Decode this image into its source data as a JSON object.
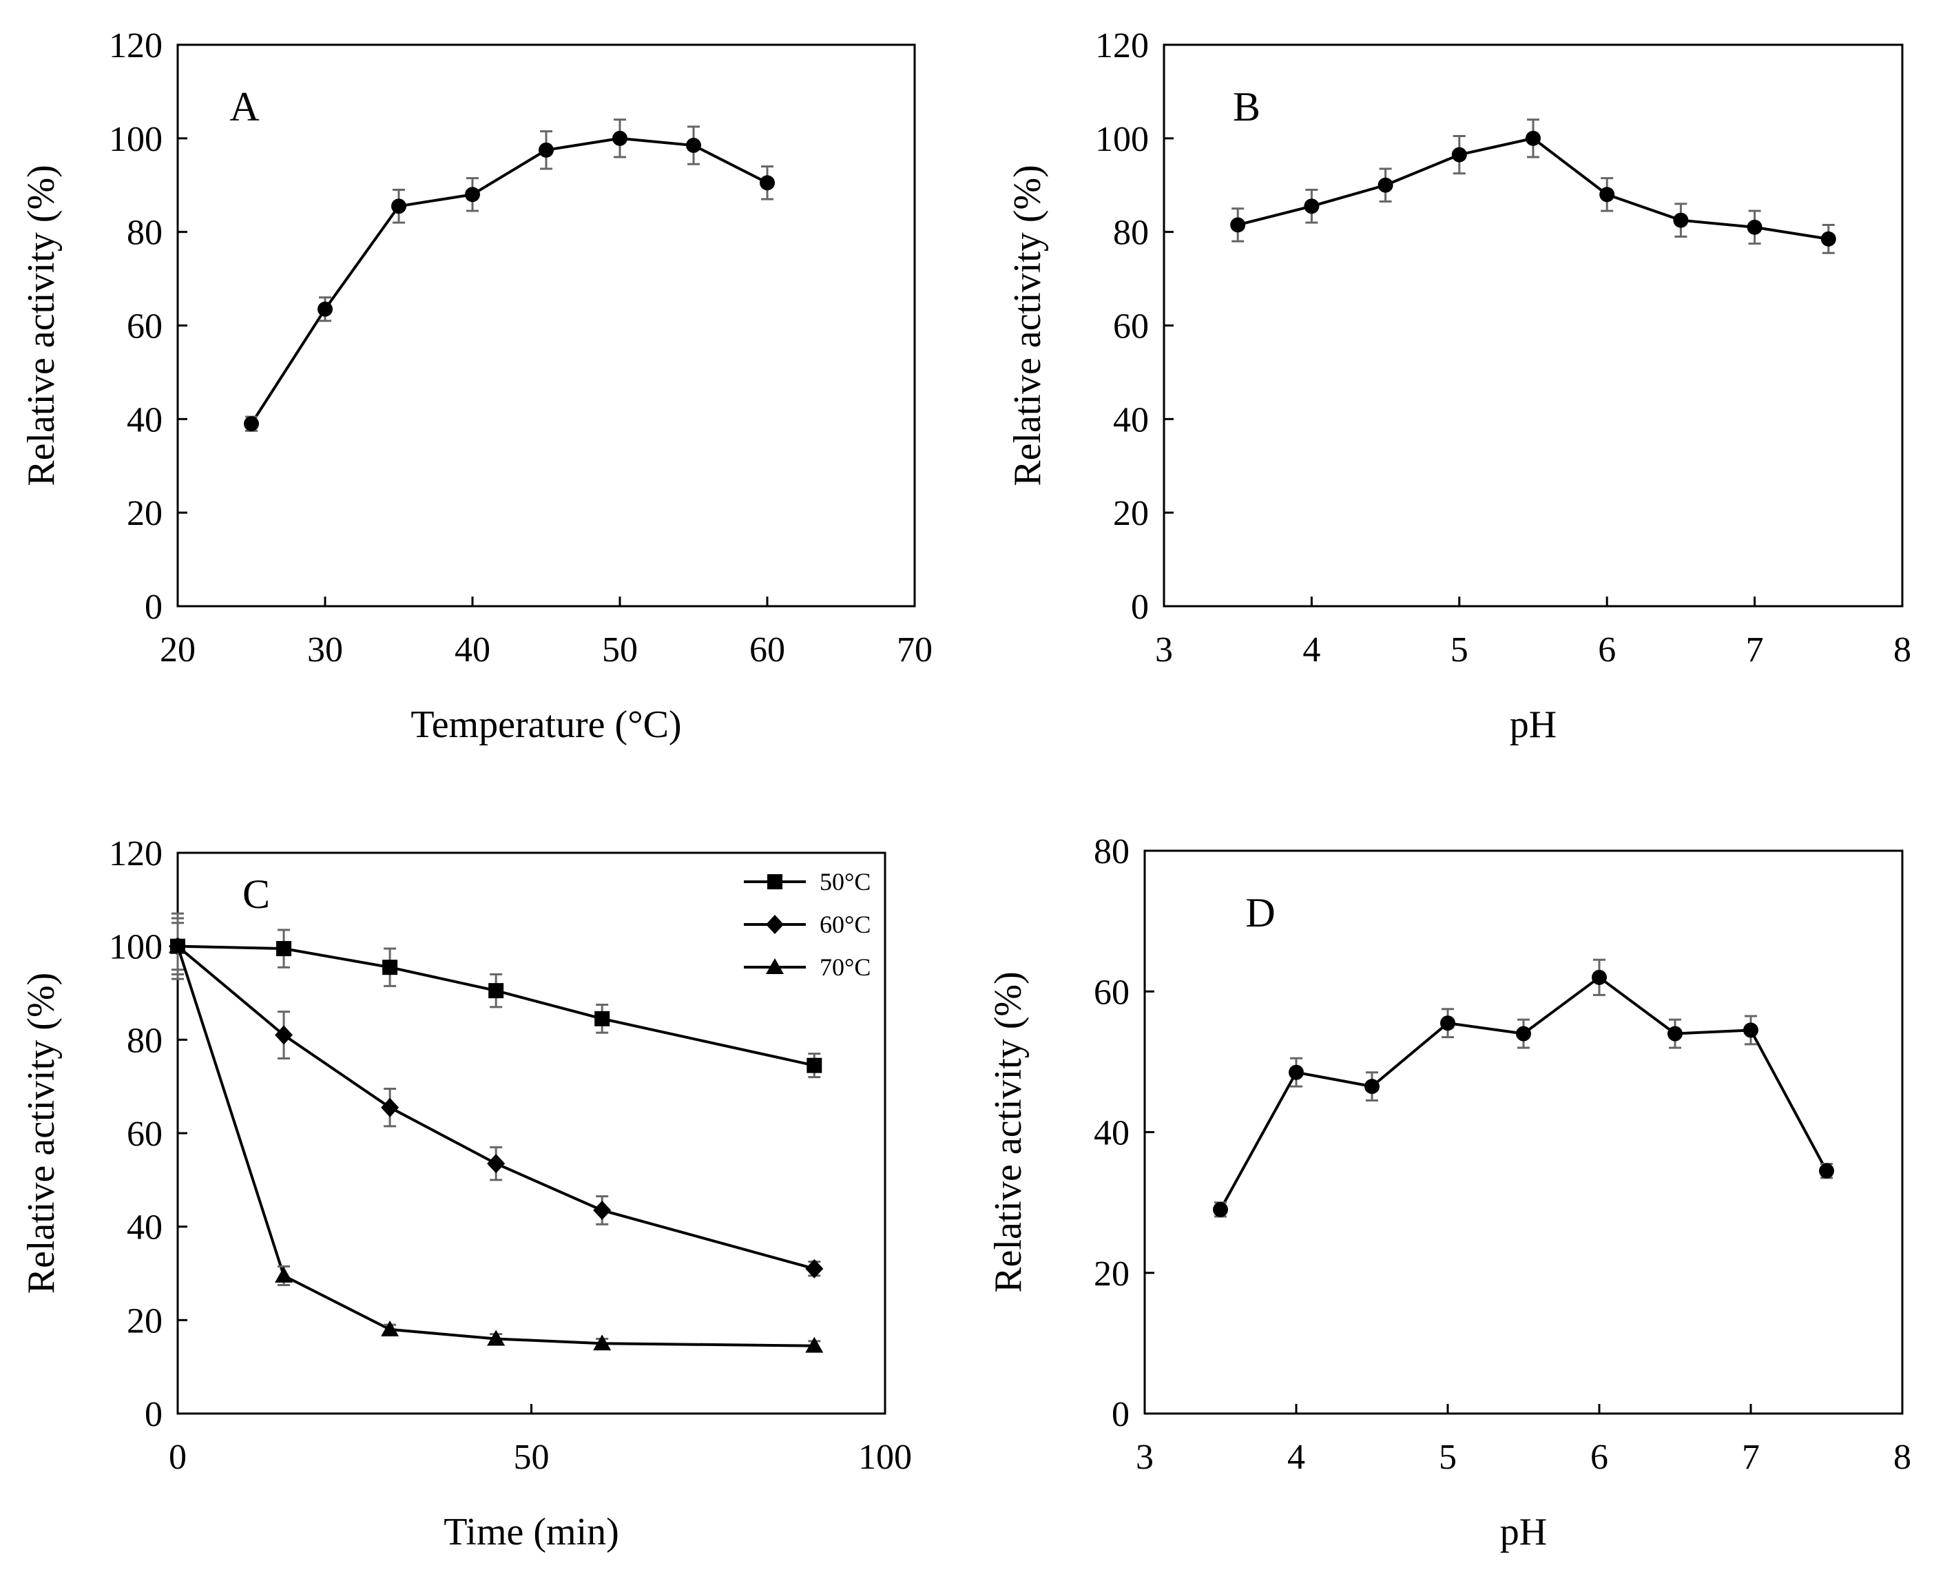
{
  "chart_data": [
    {
      "type": "line",
      "panel_label": "A",
      "xlabel": "Temperature (°C)",
      "ylabel": "Relative activity (%)",
      "xlim": [
        20,
        70
      ],
      "ylim": [
        0,
        120
      ],
      "xticks": [
        20,
        30,
        40,
        50,
        60,
        70
      ],
      "yticks": [
        0,
        20,
        40,
        60,
        80,
        100,
        120
      ],
      "series": [
        {
          "marker": "circle",
          "x": [
            25,
            30,
            35,
            40,
            45,
            50,
            55,
            60
          ],
          "y": [
            39,
            63.5,
            85.5,
            88,
            97.5,
            100,
            98.5,
            90.5
          ],
          "err": [
            1.5,
            2.5,
            3.5,
            3.5,
            4,
            4,
            4,
            3.5
          ]
        }
      ]
    },
    {
      "type": "line",
      "panel_label": "B",
      "xlabel": "pH",
      "ylabel": "Relative activity (%)",
      "xlim": [
        3,
        8
      ],
      "ylim": [
        0,
        120
      ],
      "xticks": [
        3,
        4,
        5,
        6,
        7,
        8
      ],
      "yticks": [
        0,
        20,
        40,
        60,
        80,
        100,
        120
      ],
      "series": [
        {
          "marker": "circle",
          "x": [
            3.5,
            4,
            4.5,
            5,
            5.5,
            6,
            6.5,
            7,
            7.5
          ],
          "y": [
            81.5,
            85.5,
            90,
            96.5,
            100,
            88,
            82.5,
            81,
            78.5
          ],
          "err": [
            3.5,
            3.5,
            3.5,
            4,
            4,
            3.5,
            3.5,
            3.5,
            3
          ]
        }
      ]
    },
    {
      "type": "line",
      "panel_label": "C",
      "xlabel": "Time (min)",
      "ylabel": "Relative activity (%)",
      "xlim": [
        0,
        100
      ],
      "ylim": [
        0,
        120
      ],
      "xticks": [
        0,
        50,
        100
      ],
      "yticks": [
        0,
        20,
        40,
        60,
        80,
        100,
        120
      ],
      "legend_position": "top-right",
      "series": [
        {
          "name": "50°C",
          "marker": "square",
          "x": [
            0,
            15,
            30,
            45,
            60,
            90
          ],
          "y": [
            100,
            99.5,
            95.5,
            90.5,
            84.5,
            74.5
          ],
          "err": [
            6,
            4,
            4,
            3.5,
            3,
            2.5
          ]
        },
        {
          "name": "60°C",
          "marker": "diamond",
          "x": [
            0,
            15,
            30,
            45,
            60,
            90
          ],
          "y": [
            100,
            81,
            65.5,
            53.5,
            43.5,
            31
          ],
          "err": [
            5,
            5,
            4,
            3.5,
            3,
            1.5
          ]
        },
        {
          "name": "70°C",
          "marker": "triangle",
          "x": [
            0,
            15,
            30,
            45,
            60,
            90
          ],
          "y": [
            100,
            29.5,
            18,
            16,
            15,
            14.5
          ],
          "err": [
            7,
            2,
            1,
            1,
            1,
            1
          ]
        }
      ]
    },
    {
      "type": "line",
      "panel_label": "D",
      "xlabel": "pH",
      "ylabel": "Relative activity (%)",
      "xlim": [
        3,
        8
      ],
      "ylim": [
        0,
        80
      ],
      "xticks": [
        3,
        4,
        5,
        6,
        7,
        8
      ],
      "yticks": [
        0,
        20,
        40,
        60,
        80
      ],
      "series": [
        {
          "marker": "circle",
          "x": [
            3.5,
            4,
            4.5,
            5,
            5.5,
            6,
            6.5,
            7,
            7.5
          ],
          "y": [
            29,
            48.5,
            46.5,
            55.5,
            54,
            62,
            54,
            54.5,
            34.5
          ],
          "err": [
            1,
            2,
            2,
            2,
            2,
            2.5,
            2,
            2,
            1
          ]
        }
      ]
    }
  ]
}
